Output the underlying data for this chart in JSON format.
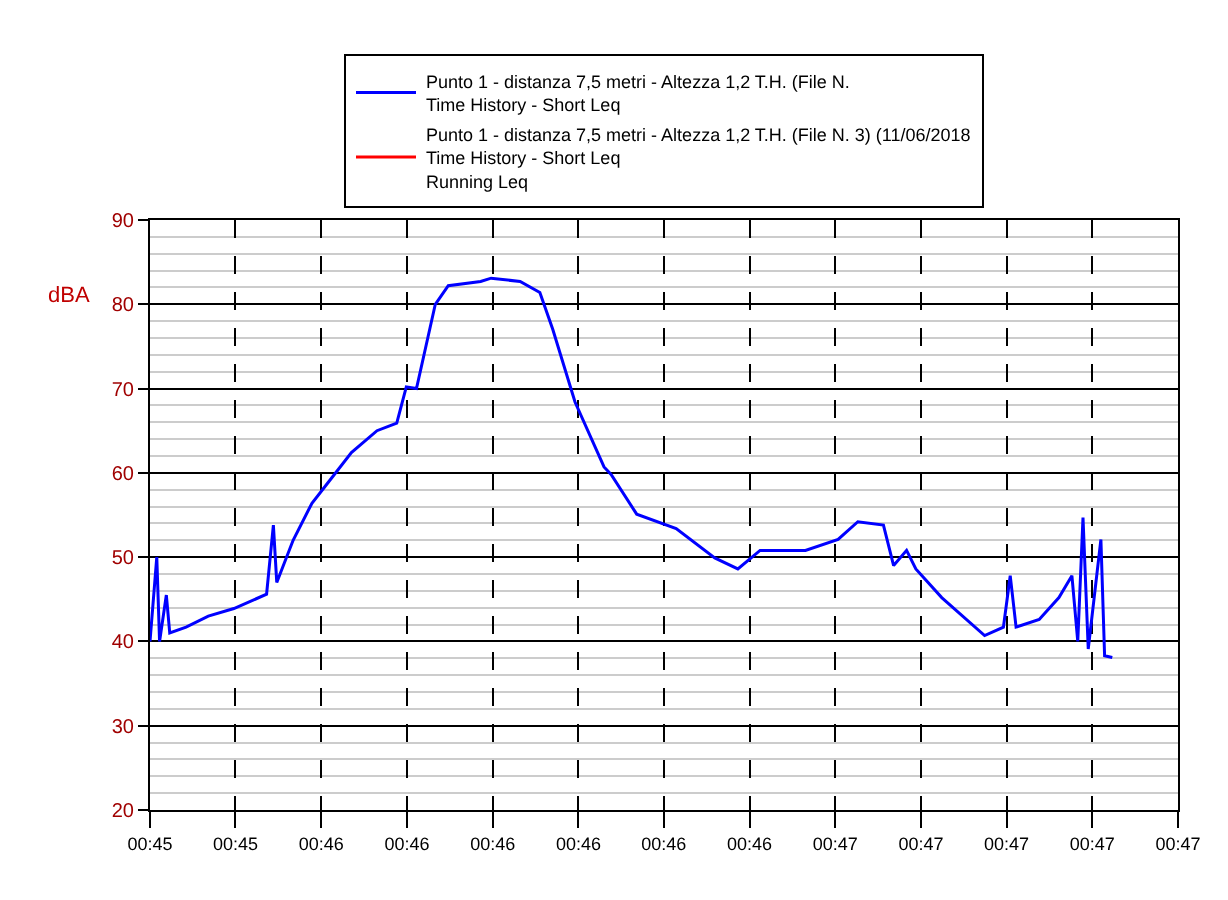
{
  "chart_data": {
    "type": "line",
    "ylabel": "dBA",
    "x": [
      0.75417,
      0.75439,
      0.75448,
      0.7547,
      0.75481,
      0.75534,
      0.75606,
      0.75689,
      0.75795,
      0.75817,
      0.75828,
      0.75881,
      0.75942,
      0.75987,
      0.7607,
      0.76153,
      0.76217,
      0.76248,
      0.76281,
      0.76342,
      0.76384,
      0.76489,
      0.76523,
      0.76617,
      0.76681,
      0.76723,
      0.76795,
      0.76889,
      0.76912,
      0.76995,
      0.77123,
      0.77248,
      0.77323,
      0.77395,
      0.77542,
      0.77648,
      0.77712,
      0.77795,
      0.77828,
      0.7787,
      0.779,
      0.77984,
      0.78123,
      0.78184,
      0.78206,
      0.78225,
      0.783,
      0.78364,
      0.78406,
      0.78425,
      0.78442,
      0.78459,
      0.785,
      0.78512,
      0.78537
    ],
    "series": [
      {
        "name": "Punto 1 - distanza 7,5 metri - Altezza 1,2 T.H. (File N.\nTime History - Short Leq",
        "color": "#0000ff",
        "values": [
          40,
          50,
          40,
          45.5,
          41,
          41.7,
          43,
          43.9,
          45.6,
          53.8,
          47,
          52,
          56.4,
          58.5,
          62.4,
          65,
          65.9,
          70.2,
          70,
          80,
          82.2,
          82.7,
          83.1,
          82.7,
          81.4,
          77,
          68.4,
          60.7,
          59.8,
          55.1,
          53.4,
          49.9,
          48.6,
          50.8,
          50.8,
          52.1,
          54.2,
          53.8,
          49,
          50.8,
          48.6,
          45.2,
          40.7,
          41.7,
          47.8,
          41.7,
          42.6,
          45.2,
          47.8,
          40,
          54.7,
          39.1,
          52.1,
          38.3,
          38.1
        ]
      },
      {
        "name": "Punto 1 - distanza 7,5 metri - Altezza 1,2 T.H. (File N. 3) (11/06/2018\nTime History - Short Leq\nRunning Leq",
        "color": "#ff0000",
        "values": [
          null,
          null,
          null,
          null,
          null,
          null,
          null,
          null,
          null,
          null,
          null,
          null,
          null,
          null,
          null,
          null,
          null,
          null,
          null,
          null,
          null,
          null,
          null,
          null,
          null,
          null,
          null,
          null,
          null,
          null,
          null,
          null,
          null,
          null,
          null,
          null,
          null,
          null,
          null,
          null,
          null,
          null,
          null,
          null,
          null,
          null,
          null,
          null,
          null,
          null,
          null,
          null,
          null,
          null,
          null
        ]
      }
    ],
    "xlim": [
      0.75417,
      0.7875
    ],
    "xticks": [
      {
        "value": 0.75417,
        "label": "00:45"
      },
      {
        "value": 0.75694,
        "label": "00:45"
      },
      {
        "value": 0.75972,
        "label": "00:46"
      },
      {
        "value": 0.7625,
        "label": "00:46"
      },
      {
        "value": 0.76528,
        "label": "00:46"
      },
      {
        "value": 0.76806,
        "label": "00:46"
      },
      {
        "value": 0.77083,
        "label": "00:46"
      },
      {
        "value": 0.77361,
        "label": "00:46"
      },
      {
        "value": 0.77639,
        "label": "00:47"
      },
      {
        "value": 0.77917,
        "label": "00:47"
      },
      {
        "value": 0.78194,
        "label": "00:47"
      },
      {
        "value": 0.78472,
        "label": "00:47"
      },
      {
        "value": 0.7875,
        "label": "00:47"
      }
    ],
    "ylim": [
      20,
      90
    ],
    "yticks": [
      20,
      30,
      40,
      50,
      60,
      70,
      80,
      90
    ],
    "grid": true,
    "legend": "top",
    "marker": "none",
    "line_style": "solid"
  }
}
